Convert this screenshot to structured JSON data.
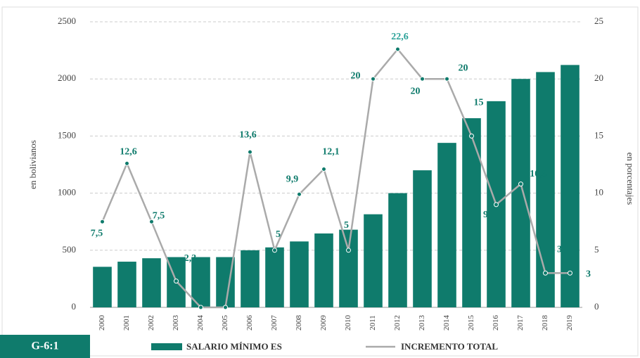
{
  "chart_data": {
    "type": "bar-line",
    "label": "G-6:1",
    "ylabel": "en bolivianos",
    "y2label": "en porcentajes",
    "categories": [
      "2000",
      "2001",
      "2002",
      "2003",
      "2004",
      "2005",
      "2006",
      "2007",
      "2008",
      "2009",
      "2010",
      "2011",
      "2012",
      "2013",
      "2014",
      "2015",
      "2016",
      "2017",
      "2018",
      "2019"
    ],
    "series": [
      {
        "name": "SALARIO MÍNIMO ES",
        "type": "bar",
        "color": "#0f7b6c",
        "values": [
          355,
          400,
          430,
          440,
          440,
          440,
          500,
          525,
          577,
          647,
          680,
          815,
          1000,
          1200,
          1440,
          1656,
          1805,
          2000,
          2060,
          2122
        ]
      },
      {
        "name": "INCREMENTO TOTAL",
        "type": "line",
        "axis": "y2",
        "color": "#aaaaaa",
        "values": [
          7.5,
          12.6,
          7.5,
          2.3,
          0,
          0,
          13.6,
          5,
          9.9,
          12.1,
          5,
          20,
          22.6,
          20,
          20,
          15,
          9,
          10.8,
          3,
          3
        ],
        "value_labels": [
          "7,5",
          "12,6",
          "7,5",
          "2,3",
          "0",
          "0",
          "13,6",
          "5",
          "9,9",
          "12,1",
          "5",
          "20",
          "22,6",
          "20",
          "20",
          "15",
          "9",
          "10,8",
          "3",
          "3"
        ]
      }
    ],
    "ylim": [
      0,
      2500
    ],
    "yticks": [
      0,
      500,
      1000,
      1500,
      2000,
      2500
    ],
    "y2lim": [
      0,
      25
    ],
    "y2ticks": [
      0,
      5,
      10,
      15,
      20,
      25
    ],
    "grid": true
  }
}
